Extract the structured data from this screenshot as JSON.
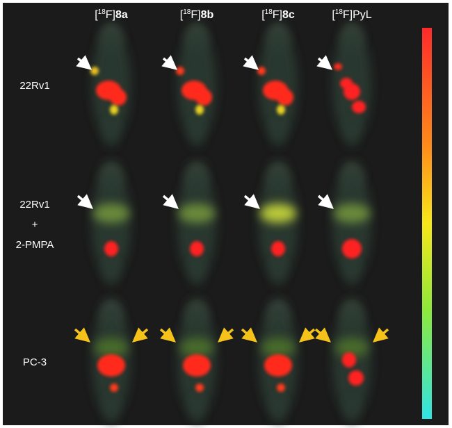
{
  "columns": [
    {
      "pre": "[",
      "sup": "18",
      "mid": "F]",
      "bold": "8a"
    },
    {
      "pre": "[",
      "sup": "18",
      "mid": "F]",
      "bold": "8b"
    },
    {
      "pre": "[",
      "sup": "18",
      "mid": "F]",
      "bold": "8c"
    },
    {
      "pre": "[",
      "sup": "18",
      "mid": "F]PyL",
      "bold": ""
    }
  ],
  "rows": [
    {
      "lines": [
        "22Rv1"
      ]
    },
    {
      "lines": [
        "22Rv1",
        "+",
        "2-PMPA"
      ]
    },
    {
      "lines": [
        "PC-3"
      ]
    }
  ]
}
